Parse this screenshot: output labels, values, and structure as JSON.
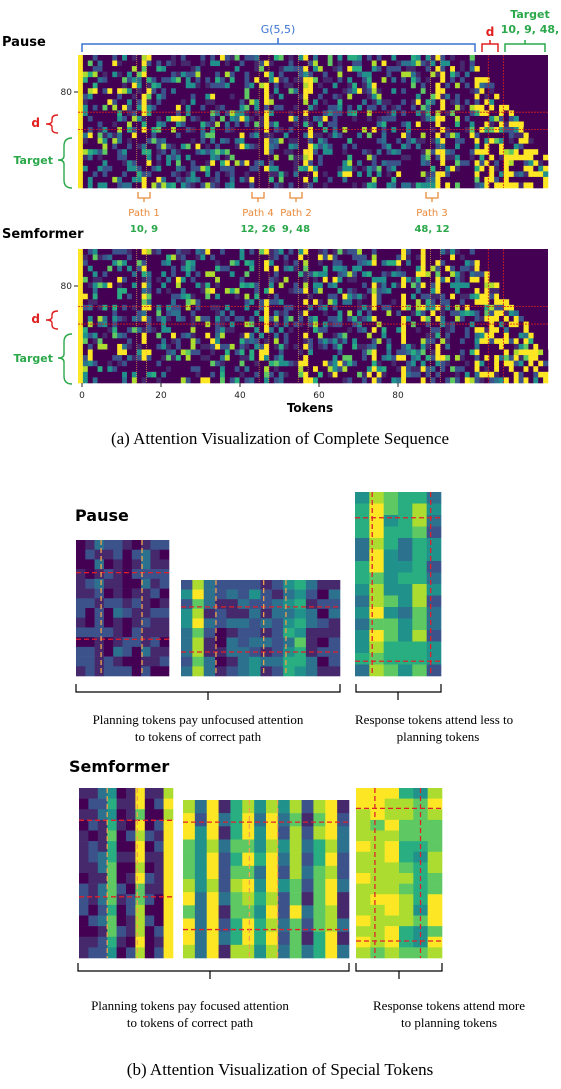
{
  "top": {
    "pause_label": "Pause",
    "semformer_label": "Semformer",
    "graph_label": "G(5,5)",
    "d_label": "d",
    "target_label": "Target",
    "target_values": "10, 9, 48,",
    "row_tick": "80",
    "row_d": "d",
    "row_target": "Target",
    "paths": [
      {
        "name": "Path 1",
        "values": "10, 9"
      },
      {
        "name": "Path 4",
        "values": "12, 26"
      },
      {
        "name": "Path 2",
        "values": "9, 48"
      },
      {
        "name": "Path 3",
        "values": "48, 12"
      }
    ],
    "x_ticks": [
      "0",
      "20",
      "40",
      "60",
      "80"
    ],
    "x_label": "Tokens",
    "caption": "(a) Attention Visualization of Complete Sequence"
  },
  "bottom": {
    "pause_label": "Pause",
    "semformer_label": "Semformer",
    "pause_planning_caption": [
      "Planning tokens pay unfocused attention",
      "to tokens of correct path"
    ],
    "pause_response_caption": [
      "Response tokens attend less to",
      "planning tokens"
    ],
    "sem_planning_caption": [
      "Planning tokens pay focused attention",
      "to tokens of correct path"
    ],
    "sem_response_caption": [
      "Response tokens attend more",
      "to planning tokens"
    ],
    "caption": "(b) Attention Visualization of Special Tokens"
  },
  "colors": {
    "graph_blue": "#3a73d1",
    "d_red": "#e02020",
    "target_green": "#2aa84a",
    "path_orange": "#e98a3a",
    "viridis_dark": "#440154",
    "viridis_yellow": "#fde725"
  }
}
